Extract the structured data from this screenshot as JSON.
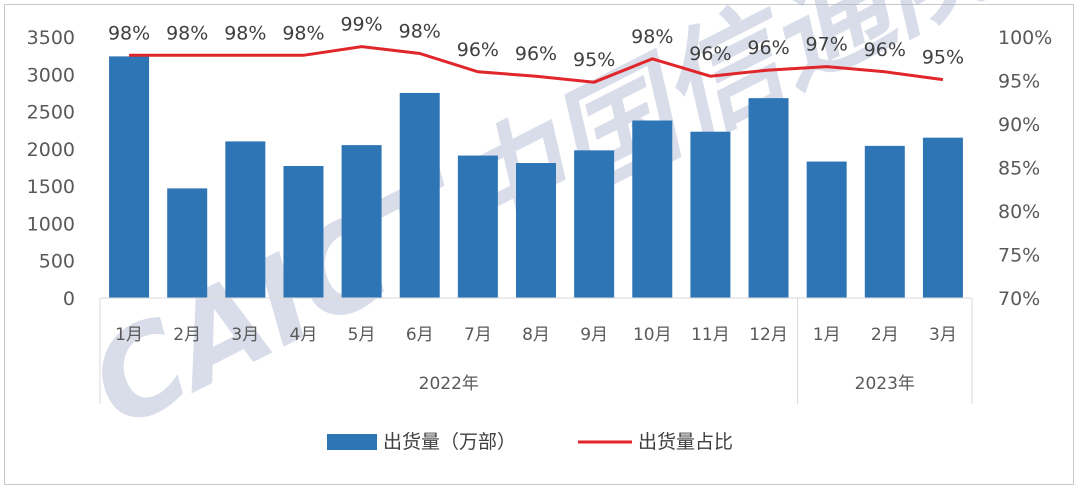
{
  "chart_data": {
    "type": "bar",
    "categories": [
      "1月",
      "2月",
      "3月",
      "4月",
      "5月",
      "6月",
      "7月",
      "8月",
      "9月",
      "10月",
      "11月",
      "12月",
      "1月",
      "2月",
      "3月"
    ],
    "year_groups": [
      {
        "label": "2022年",
        "count": 12
      },
      {
        "label": "2023年",
        "count": 3
      }
    ],
    "series": [
      {
        "name": "出货量（万部）",
        "type": "bar",
        "axis": "left",
        "color": "#2e75b6",
        "values": [
          3240,
          1470,
          2100,
          1770,
          2050,
          2750,
          1910,
          1810,
          1980,
          2380,
          2230,
          2680,
          1830,
          2040,
          2150
        ]
      },
      {
        "name": "出货量占比",
        "type": "line",
        "axis": "right",
        "color": "#e0262b",
        "values": [
          97.9,
          97.9,
          97.9,
          97.9,
          98.9,
          98.1,
          96.0,
          95.5,
          94.8,
          97.5,
          95.5,
          96.2,
          96.6,
          96.0,
          95.1
        ]
      }
    ],
    "data_labels": [
      "98%",
      "98%",
      "98%",
      "98%",
      "99%",
      "98%",
      "96%",
      "96%",
      "95%",
      "98%",
      "96%",
      "96%",
      "97%",
      "96%",
      "95%"
    ],
    "y_left": {
      "min": 0,
      "max": 3500,
      "ticks": [
        "0",
        "500",
        "1000",
        "1500",
        "2000",
        "2500",
        "3000",
        "3500"
      ]
    },
    "y_right": {
      "min": 70,
      "max": 100,
      "ticks": [
        "70%",
        "75%",
        "80%",
        "85%",
        "90%",
        "95%",
        "100%"
      ]
    },
    "legend": {
      "position": "bottom",
      "items": [
        "出货量（万部）",
        "出货量占比"
      ]
    },
    "watermark": "CAICT中国信通院",
    "grid": false
  }
}
